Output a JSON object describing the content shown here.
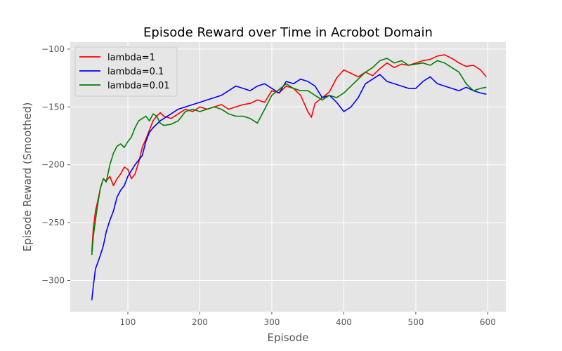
{
  "chart_data": {
    "type": "line",
    "title": "Episode Reward over Time in Acrobot Domain",
    "xlabel": "Episode",
    "ylabel": "Episode Reward (Smoothed)",
    "xlim": [
      20,
      625
    ],
    "ylim": [
      -327,
      -94
    ],
    "xticks": [
      100,
      200,
      300,
      400,
      500,
      600
    ],
    "yticks": [
      -300,
      -250,
      -200,
      -150,
      -100
    ],
    "grid": true,
    "legend_position": "top-left",
    "colors": {
      "plot_background": "#e5e5e5",
      "grid": "#ffffff"
    },
    "series": [
      {
        "name": "lambda=1",
        "color": "#ff0000",
        "x": [
          50,
          52,
          55,
          58,
          62,
          66,
          70,
          75,
          80,
          85,
          90,
          95,
          100,
          105,
          110,
          115,
          120,
          125,
          130,
          135,
          140,
          145,
          150,
          160,
          170,
          180,
          190,
          200,
          210,
          220,
          230,
          240,
          250,
          260,
          270,
          280,
          290,
          300,
          310,
          320,
          330,
          340,
          350,
          355,
          360,
          370,
          380,
          390,
          400,
          410,
          420,
          430,
          440,
          450,
          460,
          470,
          480,
          490,
          500,
          510,
          520,
          530,
          540,
          550,
          560,
          570,
          580,
          590,
          598
        ],
        "y": [
          -275,
          -255,
          -240,
          -232,
          -220,
          -212,
          -214,
          -210,
          -218,
          -212,
          -208,
          -202,
          -204,
          -212,
          -208,
          -198,
          -185,
          -178,
          -170,
          -162,
          -158,
          -155,
          -158,
          -160,
          -156,
          -152,
          -154,
          -150,
          -152,
          -150,
          -148,
          -152,
          -150,
          -148,
          -147,
          -144,
          -146,
          -136,
          -138,
          -132,
          -134,
          -140,
          -154,
          -159,
          -147,
          -142,
          -137,
          -125,
          -118,
          -121,
          -124,
          -120,
          -123,
          -117,
          -112,
          -116,
          -113,
          -114,
          -112,
          -110,
          -109,
          -106,
          -105,
          -108,
          -112,
          -115,
          -114,
          -118,
          -124
        ]
      },
      {
        "name": "lambda=0.1",
        "color": "#0000ff",
        "x": [
          50,
          52,
          55,
          58,
          62,
          66,
          70,
          75,
          80,
          85,
          90,
          95,
          100,
          105,
          110,
          115,
          120,
          125,
          130,
          135,
          140,
          145,
          150,
          160,
          170,
          180,
          190,
          200,
          210,
          220,
          230,
          240,
          250,
          260,
          270,
          280,
          290,
          300,
          310,
          320,
          330,
          340,
          350,
          360,
          370,
          380,
          390,
          400,
          410,
          420,
          430,
          440,
          450,
          460,
          470,
          480,
          490,
          500,
          510,
          520,
          530,
          540,
          550,
          560,
          570,
          580,
          590,
          598
        ],
        "y": [
          -317,
          -305,
          -290,
          -285,
          -278,
          -270,
          -258,
          -248,
          -240,
          -228,
          -222,
          -218,
          -210,
          -205,
          -200,
          -196,
          -192,
          -180,
          -172,
          -168,
          -165,
          -162,
          -160,
          -156,
          -152,
          -150,
          -148,
          -146,
          -144,
          -142,
          -140,
          -136,
          -132,
          -134,
          -136,
          -132,
          -130,
          -134,
          -138,
          -128,
          -130,
          -126,
          -128,
          -132,
          -142,
          -140,
          -146,
          -154,
          -150,
          -142,
          -130,
          -126,
          -122,
          -128,
          -130,
          -132,
          -134,
          -134,
          -128,
          -124,
          -130,
          -132,
          -134,
          -136,
          -133,
          -136,
          -138,
          -139
        ]
      },
      {
        "name": "lambda=0.01",
        "color": "#008000",
        "x": [
          50,
          52,
          55,
          58,
          62,
          66,
          70,
          75,
          80,
          85,
          90,
          95,
          100,
          105,
          110,
          115,
          120,
          125,
          130,
          135,
          140,
          145,
          150,
          160,
          170,
          180,
          190,
          200,
          210,
          220,
          230,
          240,
          250,
          260,
          270,
          280,
          290,
          300,
          310,
          320,
          330,
          340,
          350,
          360,
          370,
          380,
          390,
          400,
          410,
          420,
          430,
          440,
          450,
          460,
          470,
          480,
          490,
          500,
          510,
          520,
          530,
          540,
          550,
          560,
          570,
          580,
          590,
          598
        ],
        "y": [
          -278,
          -262,
          -248,
          -235,
          -220,
          -212,
          -215,
          -200,
          -190,
          -184,
          -182,
          -185,
          -180,
          -176,
          -168,
          -162,
          -160,
          -158,
          -162,
          -156,
          -158,
          -164,
          -166,
          -165,
          -162,
          -154,
          -152,
          -154,
          -152,
          -150,
          -152,
          -156,
          -158,
          -158,
          -160,
          -164,
          -152,
          -140,
          -135,
          -130,
          -134,
          -136,
          -136,
          -140,
          -144,
          -140,
          -142,
          -138,
          -132,
          -126,
          -120,
          -116,
          -110,
          -108,
          -112,
          -110,
          -114,
          -113,
          -112,
          -114,
          -110,
          -112,
          -116,
          -120,
          -130,
          -136,
          -134,
          -133
        ]
      }
    ]
  }
}
